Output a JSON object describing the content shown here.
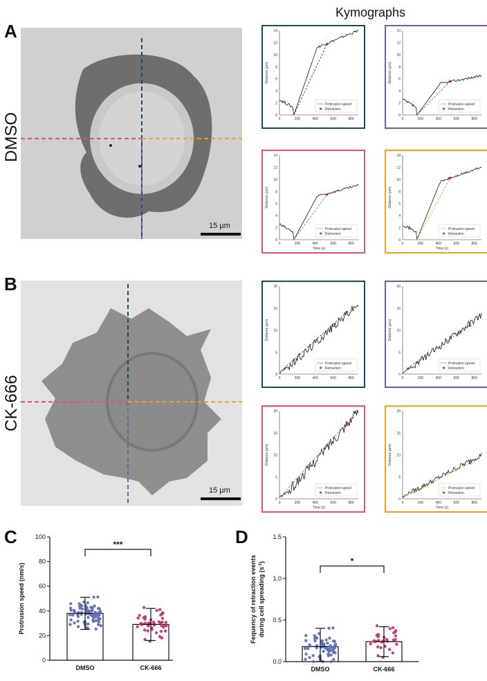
{
  "figure": {
    "kymographs_title": "Kymographs",
    "panels": {
      "A": "A",
      "B": "B",
      "C": "C",
      "D": "D"
    },
    "conditions": {
      "dmso": "DMSO",
      "ck666": "CK-666"
    },
    "scale_bar_label": "15 µm",
    "line_colors": {
      "top": "#1b4a5e",
      "vertical": "#7a5a9a",
      "left": "#e0507a",
      "right": "#f0a020"
    }
  },
  "kymographs": {
    "ylabel": "Distance (µm)",
    "xlabel": "Time (s)",
    "x_ticks": [
      "0",
      "200",
      "400",
      "600",
      "800"
    ],
    "legend_protrusion": "Protrusion speed",
    "legend_retraction": "Retraction",
    "dmso_y_ticks": [
      "0",
      "2",
      "4",
      "6",
      "8",
      "10",
      "12",
      "14"
    ],
    "ck_y_ticks": [
      "0",
      "5",
      "10",
      "15",
      "20"
    ]
  },
  "chart_data": [
    {
      "type": "scatter-bar",
      "panel": "C",
      "ylabel": "Protrusion speed (nm/s)",
      "categories": [
        "DMSO",
        "CK-666"
      ],
      "ylim": [
        0,
        100
      ],
      "y_ticks": [
        "0",
        "20",
        "40",
        "60",
        "80",
        "100"
      ],
      "means": [
        38,
        29
      ],
      "sd": [
        13,
        13
      ],
      "significance": "***",
      "colors": [
        "#5b6bb0",
        "#c0306a"
      ]
    },
    {
      "type": "scatter-bar",
      "panel": "D",
      "ylabel_line1": "Fequency of retraction events",
      "ylabel_line2": "during cell spreading (s",
      "ylabel_sup": "-1",
      "ylabel_end": ")",
      "categories": [
        "DMSO",
        "CK-666"
      ],
      "ylim": [
        0,
        1.5
      ],
      "y_ticks": [
        "0.0",
        "0.5",
        "1.0",
        "1.5"
      ],
      "means": [
        0.18,
        0.24
      ],
      "sd": [
        0.22,
        0.18
      ],
      "significance": "*",
      "colors": [
        "#5b6bb0",
        "#c0306a"
      ]
    }
  ]
}
